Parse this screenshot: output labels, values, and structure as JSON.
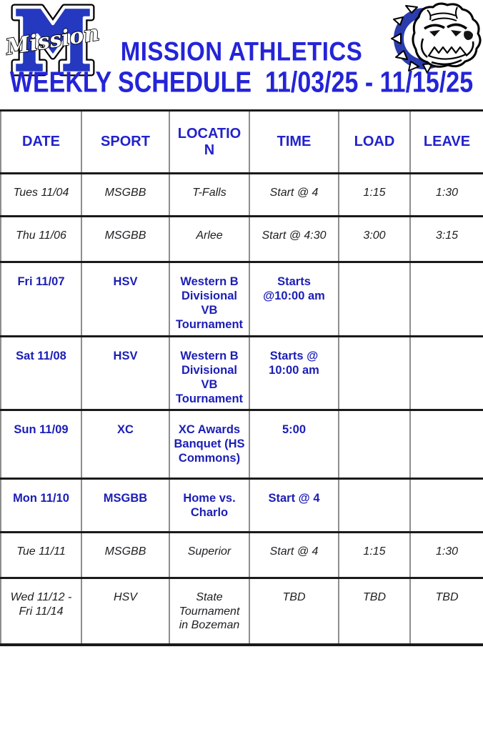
{
  "header": {
    "title": "MISSION ATHLETICS",
    "subtitle": "WEEKLY SCHEDULE  11/03/25 - 11/15/25",
    "logo_script": "Mission",
    "left_logo": "mission-m-logo",
    "right_logo": "bulldog-mascot-logo"
  },
  "colors": {
    "title_blue": "#2424d8",
    "header_blue": "#2222cc",
    "highlight_blue": "#1b1eb5",
    "body_text": "#202024",
    "grid_line": "#8e8e8e",
    "heavy_line": "#1a1a1a",
    "logo_blue": "#2438c0",
    "ring_blue": "#2b3cae"
  },
  "table": {
    "columns": [
      "DATE",
      "SPORT",
      "LOCATION",
      "TIME",
      "LOAD",
      "LEAVE"
    ],
    "rows": [
      {
        "date": "Tues 11/04",
        "sport": "MSGBB",
        "location": "T-Falls",
        "time": "Start @ 4",
        "load": "1:15",
        "leave": "1:30",
        "highlight": false
      },
      {
        "date": "Thu 11/06",
        "sport": "MSGBB",
        "location": "Arlee",
        "time": "Start @ 4:30",
        "load": "3:00",
        "leave": "3:15",
        "highlight": false
      },
      {
        "date": "Fri 11/07",
        "sport": "HSV",
        "location": "Western B\nDivisional VB\nTournament",
        "time": "Starts\n@10:00 am",
        "load": "",
        "leave": "",
        "highlight": true
      },
      {
        "date": "Sat 11/08",
        "sport": "HSV",
        "location": "Western B\nDivisional VB\nTournament",
        "time": "Starts @\n10:00 am",
        "load": "",
        "leave": "",
        "highlight": true
      },
      {
        "date": "Sun 11/09",
        "sport": "XC",
        "location": "XC Awards\nBanquet (HS\nCommons)",
        "time": "5:00",
        "load": "",
        "leave": "",
        "highlight": true
      },
      {
        "date": "Mon 11/10",
        "sport": "MSGBB",
        "location": "Home vs.\nCharlo",
        "time": "Start @ 4",
        "load": "",
        "leave": "",
        "highlight": true
      },
      {
        "date": "Tue 11/11",
        "sport": "MSGBB",
        "location": "Superior",
        "time": "Start @ 4",
        "load": "1:15",
        "leave": "1:30",
        "highlight": false
      },
      {
        "date": "Wed 11/12 -\nFri 11/14",
        "sport": "HSV",
        "location": "State\nTournament\nin Bozeman",
        "time": "TBD",
        "load": "TBD",
        "leave": "TBD",
        "highlight": false
      }
    ]
  }
}
